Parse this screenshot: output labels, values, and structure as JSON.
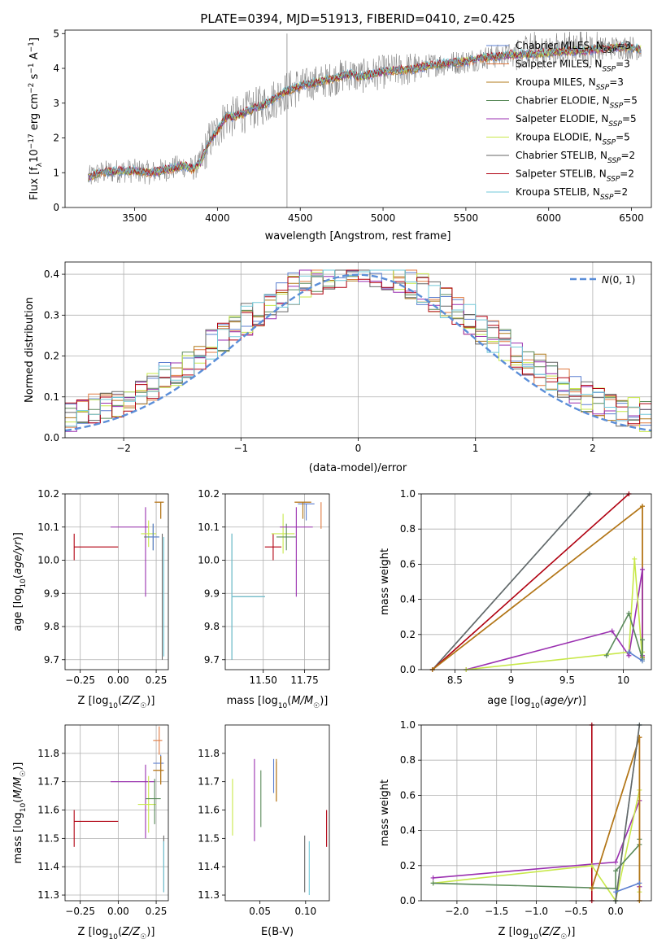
{
  "colors": {
    "chabrier_miles": "#5b7fd0",
    "salpeter_miles": "#e07a40",
    "kroupa_miles": "#b07818",
    "chabrier_elodie": "#5a8a5a",
    "salpeter_elodie": "#9a2fb0",
    "kroupa_elodie": "#c8e84a",
    "chabrier_stelib": "#666666",
    "salpeter_stelib": "#b00010",
    "kroupa_stelib": "#70c8d8",
    "normal_curve": "#5b8ed8"
  },
  "chart_data": [
    {
      "id": "spectrum",
      "type": "line",
      "title": "PLATE=0394, MJD=51913, FIBERID=0410, z=0.425",
      "xlabel": "wavelength [Angstrom, rest frame]",
      "ylabel": "Flux [f_λ10^-17 erg cm^-2 s^-1 A^-1]",
      "xlim": [
        3080,
        6620
      ],
      "ylim": [
        0,
        5.1
      ],
      "xticks": [
        3500,
        4000,
        4500,
        5000,
        5500,
        6000,
        6500
      ],
      "yticks": [
        0,
        1,
        2,
        3,
        4,
        5
      ],
      "legend_position": "top-right",
      "model_continuum": {
        "x": [
          3220,
          3260,
          3300,
          3400,
          3500,
          3600,
          3700,
          3800,
          3850,
          3900,
          3950,
          4000,
          4050,
          4100,
          4200,
          4300,
          4400,
          4500,
          4600,
          4700,
          4800,
          4850,
          4900,
          5000,
          5100,
          5200,
          5300,
          5400,
          5500,
          5600,
          5700,
          5800,
          5900,
          6000,
          6100,
          6200,
          6300,
          6400,
          6500,
          6560
        ],
        "y": [
          0.85,
          0.95,
          1.0,
          1.05,
          1.05,
          1.0,
          1.1,
          1.2,
          1.1,
          1.3,
          1.9,
          2.2,
          2.6,
          2.6,
          2.8,
          3.0,
          3.3,
          3.5,
          3.6,
          3.7,
          3.85,
          3.75,
          3.8,
          3.9,
          3.95,
          4.0,
          4.1,
          4.15,
          4.2,
          4.3,
          4.35,
          4.4,
          4.4,
          4.45,
          4.5,
          4.5,
          4.55,
          4.6,
          4.6,
          4.55
        ]
      },
      "series": [
        {
          "name": "Chabrier MILES, N_SSP=3",
          "color_key": "chabrier_miles"
        },
        {
          "name": "Salpeter MILES, N_SSP=3",
          "color_key": "salpeter_miles"
        },
        {
          "name": "Kroupa MILES, N_SSP=3",
          "color_key": "kroupa_miles"
        },
        {
          "name": "Chabrier ELODIE, N_SSP=5",
          "color_key": "chabrier_elodie"
        },
        {
          "name": "Salpeter ELODIE, N_SSP=5",
          "color_key": "salpeter_elodie"
        },
        {
          "name": "Kroupa ELODIE, N_SSP=5",
          "color_key": "kroupa_elodie"
        },
        {
          "name": "Chabrier STELIB, N_SSP=2",
          "color_key": "chabrier_stelib"
        },
        {
          "name": "Salpeter STELIB, N_SSP=2",
          "color_key": "salpeter_stelib"
        },
        {
          "name": "Kroupa STELIB, N_SSP=2",
          "color_key": "kroupa_stelib"
        }
      ]
    },
    {
      "id": "residuals",
      "type": "line",
      "xlabel": "(data-model)/error",
      "ylabel": "Normed distribution",
      "xlim": [
        -2.5,
        2.5
      ],
      "ylim": [
        0,
        0.43
      ],
      "xticks": [
        -2,
        -1,
        0,
        1,
        2
      ],
      "yticks": [
        0.0,
        0.1,
        0.2,
        0.3,
        0.4
      ],
      "grid": true,
      "legend_position": "top-right",
      "normal_label": "N(0,1)",
      "bin_width": 0.1
    },
    {
      "id": "age_vs_Z",
      "type": "scatter",
      "xlabel": "Z [log10(Z/Z☉)]",
      "ylabel": "age [log10(age/yr)]",
      "xlim": [
        -0.35,
        0.33
      ],
      "ylim": [
        9.67,
        10.2
      ],
      "xticks": [
        -0.25,
        0.0,
        0.25
      ],
      "xticklabels": [
        "−0.25",
        "0.00",
        "0.25"
      ],
      "yticks": [
        9.7,
        9.8,
        9.9,
        10.0,
        10.1,
        10.2
      ],
      "grid": true,
      "errorbars": [
        {
          "color_key": "salpeter_stelib",
          "x": -0.29,
          "xerr": [
            0.0,
            0.29
          ],
          "y": 10.04,
          "yerr": [
            0.04,
            0.04
          ]
        },
        {
          "color_key": "salpeter_elodie",
          "x": 0.18,
          "xerr": [
            0.23,
            0.02
          ],
          "y": 10.1,
          "yerr": [
            0.21,
            0.06
          ]
        },
        {
          "color_key": "kroupa_elodie",
          "x": 0.2,
          "xerr": [
            0.05,
            0.05
          ],
          "y": 10.08,
          "yerr": [
            0.04,
            0.04
          ]
        },
        {
          "color_key": "chabrier_elodie",
          "x": 0.23,
          "xerr": [
            0.06,
            0.04
          ],
          "y": 10.07,
          "yerr": [
            0.04,
            0.04
          ]
        },
        {
          "color_key": "chabrier_miles",
          "x": 0.23,
          "xerr": [
            0.04,
            0.04
          ],
          "y": 10.07,
          "yerr": [
            0.04,
            0.04
          ]
        },
        {
          "color_key": "salpeter_miles",
          "x": 0.28,
          "xerr": [
            0.04,
            0.02
          ],
          "y": 10.175,
          "yerr": [
            0.05,
            0.0
          ]
        },
        {
          "color_key": "kroupa_miles",
          "x": 0.28,
          "xerr": [
            0.04,
            0.02
          ],
          "y": 10.175,
          "yerr": [
            0.05,
            0.0
          ]
        },
        {
          "color_key": "chabrier_stelib",
          "x": 0.29,
          "xerr": [
            0.0,
            0.0
          ],
          "y": 9.89,
          "yerr": [
            0.19,
            0.19
          ]
        },
        {
          "color_key": "kroupa_stelib",
          "x": 0.3,
          "xerr": [
            0.0,
            0.0
          ],
          "y": 9.88,
          "yerr": [
            0.17,
            0.19
          ]
        }
      ]
    },
    {
      "id": "age_vs_mass",
      "type": "scatter",
      "xlabel": "mass [log10(M/M☉)]",
      "xlim": [
        11.27,
        11.9
      ],
      "ylim": [
        9.67,
        10.2
      ],
      "xticks": [
        11.5,
        11.75
      ],
      "xticklabels": [
        "11.50",
        "11.75"
      ],
      "yticks": [
        9.7,
        9.8,
        9.9,
        10.0,
        10.1,
        10.2
      ],
      "grid": true,
      "errorbars": [
        {
          "color_key": "chabrier_stelib",
          "x": 11.31,
          "xerr": [
            0.0,
            0.2
          ],
          "y": 9.89,
          "yerr": [
            0.19,
            0.19
          ]
        },
        {
          "color_key": "kroupa_stelib",
          "x": 11.31,
          "xerr": [
            0.0,
            0.2
          ],
          "y": 9.89,
          "yerr": [
            0.19,
            0.19
          ]
        },
        {
          "color_key": "salpeter_stelib",
          "x": 11.56,
          "xerr": [
            0.05,
            0.05
          ],
          "y": 10.04,
          "yerr": [
            0.04,
            0.04
          ]
        },
        {
          "color_key": "kroupa_elodie",
          "x": 11.62,
          "xerr": [
            0.07,
            0.07
          ],
          "y": 10.08,
          "yerr": [
            0.06,
            0.06
          ]
        },
        {
          "color_key": "chabrier_elodie",
          "x": 11.64,
          "xerr": [
            0.06,
            0.06
          ],
          "y": 10.07,
          "yerr": [
            0.04,
            0.04
          ]
        },
        {
          "color_key": "salpeter_elodie",
          "x": 11.7,
          "xerr": [
            0.1,
            0.1
          ],
          "y": 10.1,
          "yerr": [
            0.21,
            0.06
          ]
        },
        {
          "color_key": "chabrier_miles",
          "x": 11.76,
          "xerr": [
            0.05,
            0.05
          ],
          "y": 10.17,
          "yerr": [
            0.05,
            0.0
          ]
        },
        {
          "color_key": "salpeter_miles",
          "x": 11.74,
          "xerr": [
            0.05,
            0.05
          ],
          "y": 10.175,
          "yerr": [
            0.05,
            0.0
          ]
        },
        {
          "color_key": "kroupa_miles",
          "x": 11.74,
          "xerr": [
            0.05,
            0.05
          ],
          "y": 10.175,
          "yerr": [
            0.05,
            0.0
          ]
        },
        {
          "color_key": "salpeter_miles",
          "x": 11.85,
          "xerr": [
            0.0,
            0.0
          ],
          "y": 10.175,
          "yerr": [
            0.08,
            0.0
          ]
        }
      ]
    },
    {
      "id": "weight_vs_age",
      "type": "line",
      "xlabel": "age [log10(age/yr)]",
      "ylabel": "mass weight",
      "xlim": [
        8.2,
        10.25
      ],
      "ylim": [
        0,
        1.0
      ],
      "xticks": [
        8.5,
        9.0,
        9.5,
        10.0
      ],
      "yticks": [
        0.0,
        0.2,
        0.4,
        0.6,
        0.8,
        1.0
      ],
      "grid": true,
      "series": [
        {
          "color_key": "kroupa_stelib",
          "x": [
            8.3,
            9.7
          ],
          "y": [
            0.0,
            1.0
          ]
        },
        {
          "color_key": "chabrier_stelib",
          "x": [
            8.3,
            9.7
          ],
          "y": [
            0.0,
            1.0
          ]
        },
        {
          "color_key": "salpeter_stelib",
          "x": [
            8.3,
            10.05
          ],
          "y": [
            0.0,
            1.0
          ]
        },
        {
          "color_key": "salpeter_miles",
          "x": [
            8.3,
            10.17,
            10.17
          ],
          "y": [
            0.0,
            0.93,
            0.07
          ]
        },
        {
          "color_key": "kroupa_miles",
          "x": [
            8.3,
            10.17,
            10.17
          ],
          "y": [
            0.0,
            0.93,
            0.07
          ]
        },
        {
          "color_key": "salpeter_elodie",
          "x": [
            8.6,
            9.9,
            10.05,
            10.17,
            10.17
          ],
          "y": [
            0.0,
            0.22,
            0.08,
            0.57,
            0.08
          ]
        },
        {
          "color_key": "kroupa_elodie",
          "x": [
            8.6,
            10.05,
            10.1,
            10.17,
            10.17
          ],
          "y": [
            0.0,
            0.1,
            0.63,
            0.05,
            0.1
          ]
        },
        {
          "color_key": "chabrier_elodie",
          "x": [
            9.85,
            10.05,
            10.17,
            10.17
          ],
          "y": [
            0.08,
            0.32,
            0.06,
            0.17
          ]
        },
        {
          "color_key": "chabrier_miles",
          "x": [
            10.05,
            10.17
          ],
          "y": [
            0.1,
            0.05
          ]
        }
      ]
    },
    {
      "id": "mass_vs_Z",
      "type": "scatter",
      "xlabel": "Z [log10(Z/Z☉)]",
      "ylabel": "mass [log10(M/M☉)]",
      "xlim": [
        -0.35,
        0.33
      ],
      "ylim": [
        11.28,
        11.9
      ],
      "xticks": [
        -0.25,
        0.0,
        0.25
      ],
      "xticklabels": [
        "−0.25",
        "0.00",
        "0.25"
      ],
      "yticks": [
        11.3,
        11.4,
        11.5,
        11.6,
        11.7,
        11.8
      ],
      "grid": true,
      "errorbars": [
        {
          "color_key": "salpeter_stelib",
          "x": -0.29,
          "xerr": [
            0.0,
            0.29
          ],
          "y": 11.56,
          "yerr": [
            0.09,
            0.04
          ]
        },
        {
          "color_key": "salpeter_elodie",
          "x": 0.18,
          "xerr": [
            0.23,
            0.06
          ],
          "y": 11.7,
          "yerr": [
            0.2,
            0.06
          ]
        },
        {
          "color_key": "kroupa_elodie",
          "x": 0.2,
          "xerr": [
            0.07,
            0.05
          ],
          "y": 11.62,
          "yerr": [
            0.1,
            0.1
          ]
        },
        {
          "color_key": "chabrier_elodie",
          "x": 0.24,
          "xerr": [
            0.06,
            0.04
          ],
          "y": 11.64,
          "yerr": [
            0.09,
            0.07
          ]
        },
        {
          "color_key": "chabrier_miles",
          "x": 0.28,
          "xerr": [
            0.05,
            0.02
          ],
          "y": 11.765,
          "yerr": [
            0.03,
            0.03
          ]
        },
        {
          "color_key": "salpeter_miles",
          "x": 0.28,
          "xerr": [
            0.05,
            0.02
          ],
          "y": 11.74,
          "yerr": [
            0.05,
            0.05
          ]
        },
        {
          "color_key": "kroupa_miles",
          "x": 0.28,
          "xerr": [
            0.05,
            0.02
          ],
          "y": 11.74,
          "yerr": [
            0.05,
            0.05
          ]
        },
        {
          "color_key": "salpeter_miles",
          "x": 0.27,
          "xerr": [
            0.04,
            0.02
          ],
          "y": 11.845,
          "yerr": [
            0.05,
            0.05
          ]
        },
        {
          "color_key": "chabrier_stelib",
          "x": 0.3,
          "xerr": [
            0.0,
            0.0
          ],
          "y": 11.42,
          "yerr": [
            0.11,
            0.09
          ]
        },
        {
          "color_key": "kroupa_stelib",
          "x": 0.3,
          "xerr": [
            0.0,
            0.0
          ],
          "y": 11.42,
          "yerr": [
            0.11,
            0.07
          ]
        }
      ]
    },
    {
      "id": "mass_vs_ebv",
      "type": "scatter",
      "xlabel": "E(B-V)",
      "xlim": [
        0.012,
        0.126
      ],
      "ylim": [
        11.28,
        11.9
      ],
      "xticks": [
        0.05,
        0.1
      ],
      "xticklabels": [
        "0.05",
        "0.10"
      ],
      "yticks": [
        11.3,
        11.4,
        11.5,
        11.6,
        11.7,
        11.8
      ],
      "errorbars": [
        {
          "color_key": "kroupa_elodie",
          "x": 0.02,
          "y": 11.61,
          "yerr": [
            0.1,
            0.1
          ]
        },
        {
          "color_key": "salpeter_elodie",
          "x": 0.044,
          "y": 11.64,
          "yerr": [
            0.15,
            0.14
          ]
        },
        {
          "color_key": "chabrier_elodie",
          "x": 0.051,
          "y": 11.64,
          "yerr": [
            0.1,
            0.1
          ]
        },
        {
          "color_key": "chabrier_miles",
          "x": 0.065,
          "y": 11.72,
          "yerr": [
            0.06,
            0.06
          ]
        },
        {
          "color_key": "salpeter_miles",
          "x": 0.068,
          "y": 11.7,
          "yerr": [
            0.07,
            0.07
          ]
        },
        {
          "color_key": "kroupa_miles",
          "x": 0.068,
          "y": 11.7,
          "yerr": [
            0.07,
            0.08
          ]
        },
        {
          "color_key": "chabrier_stelib",
          "x": 0.099,
          "y": 11.42,
          "yerr": [
            0.11,
            0.09
          ]
        },
        {
          "color_key": "kroupa_stelib",
          "x": 0.104,
          "y": 11.4,
          "yerr": [
            0.1,
            0.09
          ]
        },
        {
          "color_key": "salpeter_stelib",
          "x": 0.123,
          "y": 11.53,
          "yerr": [
            0.06,
            0.07
          ]
        }
      ]
    },
    {
      "id": "weight_vs_Z",
      "type": "line",
      "xlabel": "Z [log10(Z/Z☉)]",
      "ylabel": "mass weight",
      "xlim": [
        -2.45,
        0.45
      ],
      "ylim": [
        0,
        1.0
      ],
      "xticks": [
        -2.0,
        -1.5,
        -1.0,
        -0.5,
        0.0
      ],
      "xticklabels": [
        "−2.0",
        "−1.5",
        "−1.0",
        "−0.5",
        "0.0"
      ],
      "yticks": [
        0.0,
        0.2,
        0.4,
        0.6,
        0.8,
        1.0
      ],
      "grid": true,
      "series": [
        {
          "color_key": "salpeter_stelib",
          "x": [
            -0.3,
            -0.3
          ],
          "y": [
            0.0,
            1.0
          ]
        },
        {
          "color_key": "salpeter_elodie",
          "x": [
            -2.3,
            0.0,
            0.3,
            0.3
          ],
          "y": [
            0.13,
            0.22,
            0.57,
            0.08
          ]
        },
        {
          "color_key": "kroupa_elodie",
          "x": [
            -2.3,
            -0.3,
            0.0,
            0.3,
            0.3
          ],
          "y": [
            0.1,
            0.2,
            0.0,
            0.63,
            0.05
          ]
        },
        {
          "color_key": "chabrier_elodie",
          "x": [
            -2.3,
            0.0,
            0.0,
            0.3,
            0.3
          ],
          "y": [
            0.1,
            0.07,
            0.17,
            0.32,
            0.35
          ]
        },
        {
          "color_key": "salpeter_miles",
          "x": [
            -0.3,
            0.3,
            0.3
          ],
          "y": [
            0.07,
            0.93,
            0.0
          ]
        },
        {
          "color_key": "kroupa_miles",
          "x": [
            -0.3,
            0.3,
            0.3
          ],
          "y": [
            0.07,
            0.93,
            0.0
          ]
        },
        {
          "color_key": "kroupa_stelib",
          "x": [
            0.0,
            0.3
          ],
          "y": [
            0.0,
            1.0
          ]
        },
        {
          "color_key": "chabrier_stelib",
          "x": [
            0.0,
            0.3
          ],
          "y": [
            0.0,
            1.0
          ]
        },
        {
          "color_key": "chabrier_miles",
          "x": [
            0.0,
            0.3
          ],
          "y": [
            0.05,
            0.1
          ]
        }
      ]
    }
  ]
}
